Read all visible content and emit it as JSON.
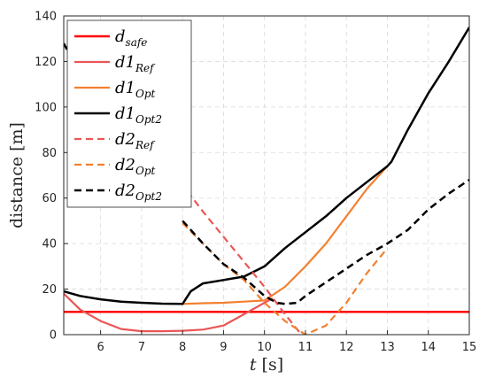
{
  "chart_data": {
    "type": "line",
    "title": "",
    "xlabel_var": "t",
    "xlabel_unit": "[s]",
    "ylabel": "distance [m]",
    "xlim": [
      5.1,
      15
    ],
    "ylim": [
      0,
      140
    ],
    "xticks": [
      6,
      7,
      8,
      9,
      10,
      11,
      12,
      13,
      14,
      15
    ],
    "yticks": [
      0,
      20,
      40,
      60,
      80,
      100,
      120,
      140
    ],
    "grid": true,
    "legend_position": "top-left",
    "series": [
      {
        "name": "d_safe",
        "label_main": "d",
        "label_sub": "safe",
        "color": "#ff0000",
        "dash": "solid",
        "width": 2.5,
        "x": [
          5.1,
          15
        ],
        "y": [
          10,
          10
        ]
      },
      {
        "name": "d1_Ref",
        "label_main": "d1",
        "label_sub": "Ref",
        "color": "#ea5656",
        "dash": "solid",
        "width": 2.2,
        "x": [
          5.1,
          5.5,
          6.0,
          6.5,
          7.0,
          7.5,
          8.0,
          8.5,
          9.0,
          9.5,
          10.0,
          10.2
        ],
        "y": [
          18,
          11,
          6,
          2.5,
          1.5,
          1.5,
          1.7,
          2.2,
          4,
          9,
          14,
          16
        ]
      },
      {
        "name": "d1_Opt",
        "label_main": "d1",
        "label_sub": "Opt",
        "color": "#f28030",
        "dash": "solid",
        "width": 2.2,
        "x": [
          8.0,
          8.5,
          9.0,
          9.5,
          10.0,
          10.5,
          11.0,
          11.5,
          12.0,
          12.5,
          13.0,
          13.1
        ],
        "y": [
          13.5,
          13.8,
          14,
          14.5,
          15,
          21,
          30,
          40,
          52,
          64,
          74,
          76
        ]
      },
      {
        "name": "d1_Opt2",
        "label_main": "d1",
        "label_sub": "Opt2",
        "color": "#000000",
        "dash": "solid",
        "width": 2.5,
        "x": [
          5.1,
          5.5,
          6.0,
          6.5,
          7.0,
          7.5,
          8.0,
          8.2,
          8.5,
          9.0,
          9.5,
          10.0,
          10.5,
          11.0,
          11.5,
          12.0,
          12.5,
          13.0,
          13.1,
          13.5,
          14.0,
          14.5,
          15.0
        ],
        "y": [
          19,
          17,
          15.5,
          14.5,
          14,
          13.6,
          13.5,
          19,
          22.5,
          24,
          25.5,
          30,
          38,
          45,
          52,
          60,
          67,
          74,
          76,
          90,
          106,
          120,
          135
        ]
      },
      {
        "name": "d2_Ref",
        "label_main": "d2",
        "label_sub": "Ref",
        "color": "#ea5656",
        "dash": "dashed",
        "width": 2.2,
        "x": [
          7.95,
          8.5,
          9.0,
          9.5,
          10.0,
          10.5,
          10.9
        ],
        "y": [
          67,
          54,
          43,
          32,
          21,
          9,
          0
        ]
      },
      {
        "name": "d2_Opt",
        "label_main": "d2",
        "label_sub": "Opt",
        "color": "#f28030",
        "dash": "dashed",
        "width": 2.2,
        "x": [
          8.0,
          8.5,
          9.0,
          9.5,
          10.0,
          10.5,
          11.0,
          11.5,
          12.0,
          12.5,
          13.0
        ],
        "y": [
          49,
          40,
          31,
          24,
          14,
          6,
          0,
          4,
          14,
          27,
          38
        ]
      },
      {
        "name": "d2_Opt2",
        "label_main": "d2",
        "label_sub": "Opt2",
        "color": "#000000",
        "dash": "dashed",
        "width": 2.5,
        "x": [
          8.0,
          8.5,
          9.0,
          9.5,
          10.0,
          10.3,
          10.5,
          10.8,
          11.0,
          11.5,
          12.0,
          12.5,
          13.0,
          13.5,
          14.0,
          14.5,
          15.0
        ],
        "y": [
          50,
          40,
          31,
          25,
          17,
          14,
          13.5,
          14,
          17,
          23,
          29,
          35,
          40,
          46,
          55,
          62,
          68
        ]
      },
      {
        "name": "d1_start_dashed",
        "label_main": "",
        "label_sub": "",
        "color": "#000000",
        "dash": "dashed",
        "width": 2.5,
        "in_legend": false,
        "x": [
          5.1,
          5.3
        ],
        "y": [
          128,
          121
        ]
      }
    ]
  }
}
